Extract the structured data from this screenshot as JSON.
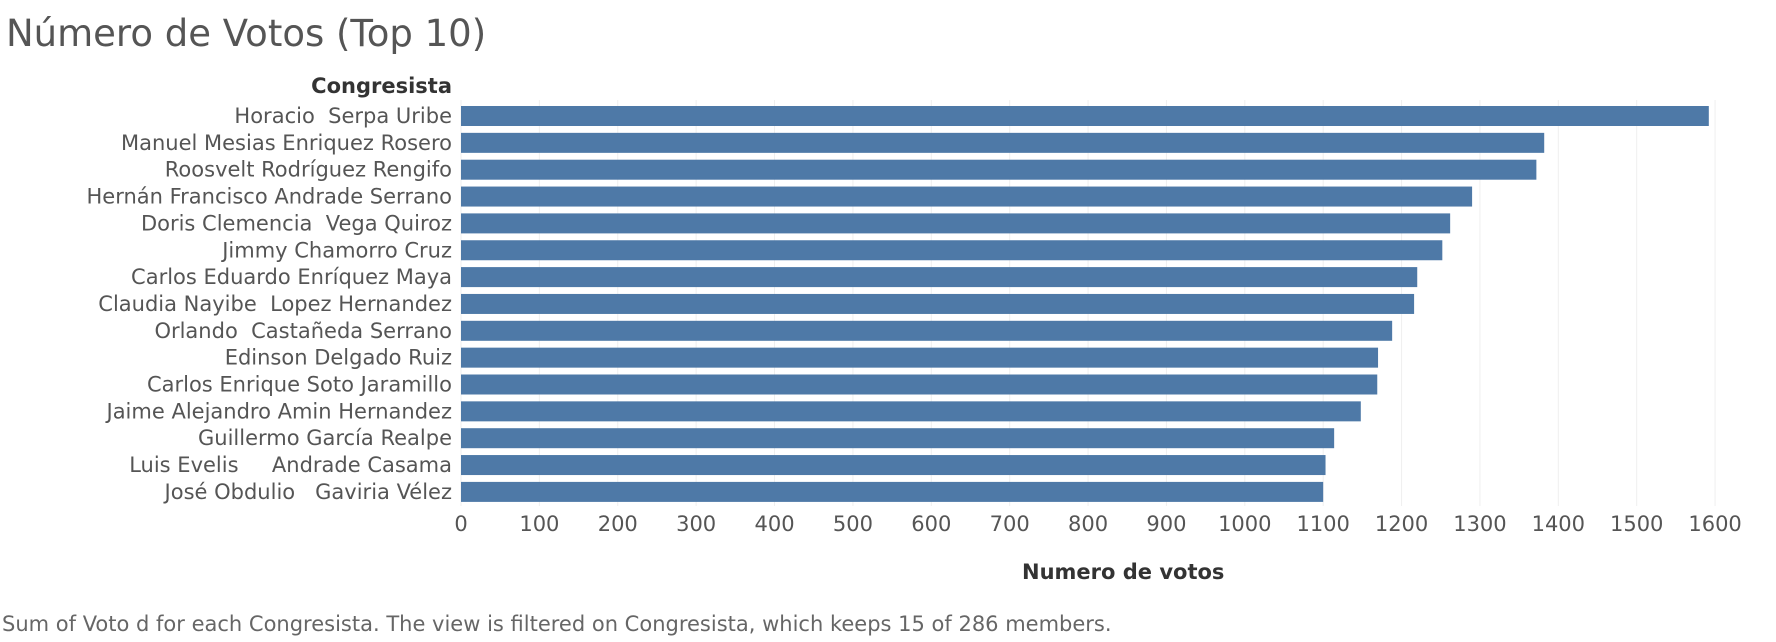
{
  "title": "Número de Votos (Top 10)",
  "caption": "Sum of Voto d for each Congresista. The view is filtered on Congresista, which keeps 15 of 286 members.",
  "colors": {
    "bar": "#4e79a7",
    "grid": "#efefef",
    "text": "#555555"
  },
  "chart_data": {
    "type": "bar",
    "orientation": "horizontal",
    "ylabel": "Congresista",
    "xlabel": "Numero de votos",
    "xlim": [
      0,
      1600
    ],
    "xticks": [
      0,
      100,
      200,
      300,
      400,
      500,
      600,
      700,
      800,
      900,
      1000,
      1100,
      1200,
      1300,
      1400,
      1500,
      1600
    ],
    "grid": true,
    "categories": [
      "Horacio  Serpa Uribe",
      "Manuel Mesias Enriquez Rosero",
      "Roosvelt Rodríguez Rengifo",
      "Hernán Francisco Andrade Serrano",
      "Doris Clemencia  Vega Quiroz",
      "Jimmy Chamorro Cruz",
      "Carlos Eduardo Enríquez Maya",
      "Claudia Nayibe  Lopez Hernandez",
      "Orlando  Castañeda Serrano",
      "Edinson Delgado Ruiz",
      "Carlos Enrique Soto Jaramillo",
      "Jaime Alejandro Amin Hernandez",
      "Guillermo García Realpe",
      "Luis Evelis     Andrade Casama",
      "José Obdulio   Gaviria Vélez"
    ],
    "values": [
      1592,
      1382,
      1372,
      1290,
      1262,
      1252,
      1220,
      1216,
      1188,
      1170,
      1169,
      1148,
      1114,
      1103,
      1100
    ]
  }
}
